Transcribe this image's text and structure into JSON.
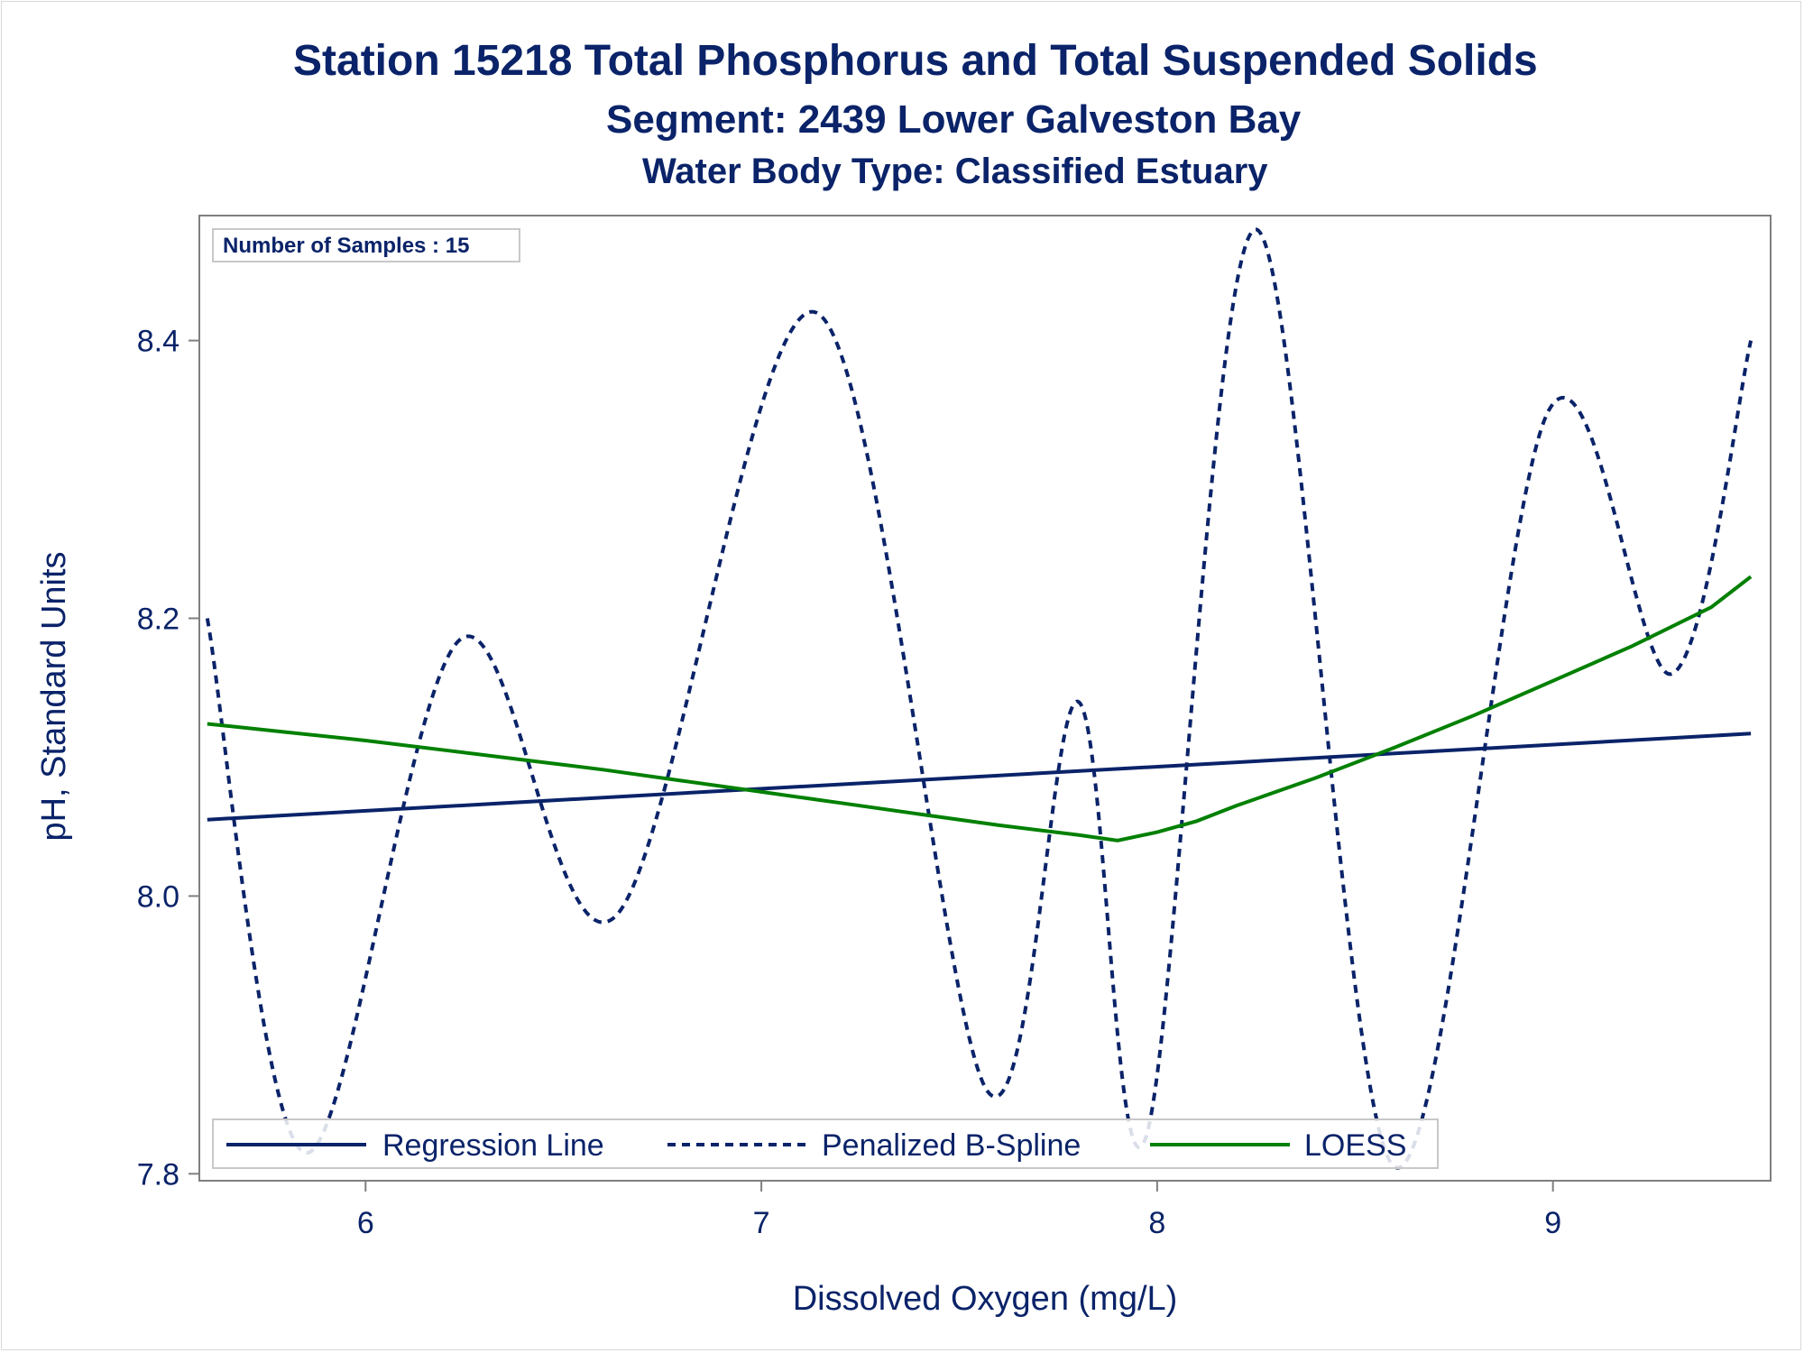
{
  "titles": {
    "line1": "Station 15218  Total Phosphorus and Total Suspended Solids",
    "line2": "Segment: 2439  Lower Galveston Bay",
    "line3": "Water Body Type: Classified Estuary"
  },
  "inset_label": "Number of Samples : 15",
  "colors": {
    "text": "#0a2369",
    "regression": "#0a2369",
    "spline": "#0a2369",
    "loess": "#008000",
    "axis": "#7f7f7f"
  },
  "chart_data": {
    "type": "line",
    "xlabel": "Dissolved Oxygen (mg/L)",
    "ylabel": "pH, Standard Units",
    "xlim": [
      5.58,
      9.55
    ],
    "ylim": [
      7.795,
      8.49
    ],
    "xticks": [
      6,
      7,
      8,
      9
    ],
    "xtick_labels": [
      "6",
      "7",
      "8",
      "9"
    ],
    "yticks": [
      7.8,
      8.0,
      8.2,
      8.4
    ],
    "ytick_labels": [
      "7.8",
      "8.0",
      "8.2",
      "8.4"
    ],
    "legend_position": "bottom-left inside",
    "series": [
      {
        "name": "Regression Line",
        "style": "solid",
        "x": [
          5.6,
          9.5
        ],
        "y": [
          8.055,
          8.117
        ]
      },
      {
        "name": "Penalized B-Spline",
        "style": "dashed",
        "x": [
          5.6,
          5.85,
          6.24,
          6.63,
          7.14,
          7.57,
          7.8,
          7.97,
          8.25,
          8.6,
          8.99,
          9.3,
          9.5
        ],
        "y": [
          8.2,
          7.815,
          8.185,
          7.985,
          8.42,
          7.86,
          8.14,
          7.825,
          8.48,
          7.805,
          8.35,
          8.16,
          8.4
        ]
      },
      {
        "name": "LOESS",
        "style": "solid",
        "x": [
          5.6,
          5.8,
          6.0,
          6.2,
          6.4,
          6.6,
          6.8,
          7.0,
          7.2,
          7.4,
          7.6,
          7.8,
          7.9,
          8.0,
          8.1,
          8.2,
          8.4,
          8.6,
          8.8,
          9.0,
          9.2,
          9.4,
          9.5
        ],
        "y": [
          8.124,
          8.118,
          8.112,
          8.105,
          8.098,
          8.091,
          8.083,
          8.075,
          8.067,
          8.059,
          8.051,
          8.044,
          8.04,
          8.046,
          8.054,
          8.065,
          8.085,
          8.107,
          8.13,
          8.155,
          8.18,
          8.208,
          8.23
        ]
      }
    ]
  }
}
